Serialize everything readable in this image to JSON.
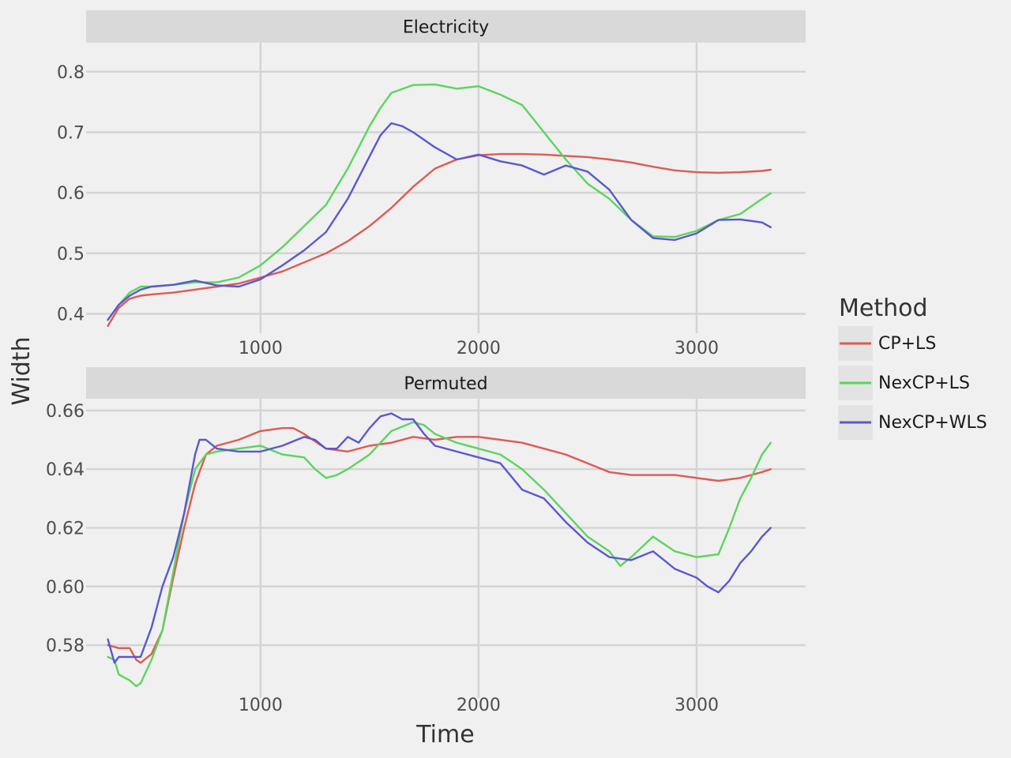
{
  "chart_data": {
    "type": "line",
    "xlabel": "Time",
    "ylabel": "Width",
    "legend": {
      "title": "Method",
      "position": "right",
      "entries": [
        {
          "name": "CP+LS",
          "color": "#de5a52"
        },
        {
          "name": "NexCP+LS",
          "color": "#5bd55d"
        },
        {
          "name": "NexCP+WLS",
          "color": "#5b57d1"
        }
      ]
    },
    "grid": true,
    "panels": [
      {
        "strip": "Electricity",
        "xlim": [
          200,
          3500
        ],
        "ylim": [
          0.368,
          0.848
        ],
        "x_ticks": [
          1000,
          2000,
          3000
        ],
        "x_tick_labels": [
          "1000",
          "2000",
          "3000"
        ],
        "y_ticks": [
          0.4,
          0.5,
          0.6,
          0.7,
          0.8
        ],
        "y_tick_labels": [
          "0.4",
          "0.5",
          "0.6",
          "0.7",
          "0.8"
        ],
        "series": [
          {
            "name": "CP+LS",
            "color": "#de5a52",
            "x": [
              300,
              350,
              400,
              450,
              500,
              600,
              700,
              800,
              900,
              1000,
              1100,
              1200,
              1300,
              1400,
              1500,
              1600,
              1700,
              1800,
              1900,
              2000,
              2100,
              2200,
              2300,
              2400,
              2500,
              2600,
              2700,
              2800,
              2900,
              3000,
              3100,
              3200,
              3300,
              3340
            ],
            "y": [
              0.38,
              0.41,
              0.425,
              0.43,
              0.432,
              0.435,
              0.44,
              0.445,
              0.45,
              0.46,
              0.47,
              0.485,
              0.5,
              0.52,
              0.545,
              0.575,
              0.61,
              0.64,
              0.655,
              0.662,
              0.664,
              0.664,
              0.663,
              0.661,
              0.659,
              0.655,
              0.65,
              0.643,
              0.637,
              0.634,
              0.633,
              0.634,
              0.636,
              0.638
            ]
          },
          {
            "name": "NexCP+LS",
            "color": "#5bd55d",
            "x": [
              300,
              350,
              400,
              450,
              500,
              600,
              700,
              800,
              900,
              1000,
              1100,
              1200,
              1300,
              1400,
              1500,
              1550,
              1600,
              1700,
              1800,
              1900,
              2000,
              2100,
              2200,
              2300,
              2400,
              2500,
              2600,
              2700,
              2800,
              2900,
              3000,
              3100,
              3200,
              3300,
              3340
            ],
            "y": [
              0.39,
              0.415,
              0.435,
              0.445,
              0.445,
              0.448,
              0.452,
              0.452,
              0.46,
              0.48,
              0.51,
              0.545,
              0.58,
              0.64,
              0.71,
              0.74,
              0.765,
              0.778,
              0.779,
              0.772,
              0.776,
              0.762,
              0.745,
              0.7,
              0.655,
              0.615,
              0.59,
              0.555,
              0.528,
              0.527,
              0.537,
              0.555,
              0.565,
              0.59,
              0.599
            ]
          },
          {
            "name": "NexCP+WLS",
            "color": "#5b57d1",
            "x": [
              300,
              350,
              400,
              450,
              500,
              600,
              700,
              800,
              900,
              1000,
              1100,
              1200,
              1300,
              1400,
              1500,
              1550,
              1600,
              1650,
              1700,
              1800,
              1900,
              2000,
              2100,
              2200,
              2300,
              2400,
              2500,
              2600,
              2700,
              2800,
              2900,
              3000,
              3100,
              3200,
              3300,
              3340
            ],
            "y": [
              0.39,
              0.415,
              0.43,
              0.44,
              0.445,
              0.448,
              0.455,
              0.447,
              0.445,
              0.457,
              0.48,
              0.505,
              0.535,
              0.59,
              0.66,
              0.695,
              0.715,
              0.71,
              0.7,
              0.675,
              0.655,
              0.663,
              0.652,
              0.645,
              0.63,
              0.645,
              0.635,
              0.605,
              0.555,
              0.525,
              0.522,
              0.533,
              0.555,
              0.556,
              0.551,
              0.543
            ]
          }
        ]
      },
      {
        "strip": "Permuted",
        "xlim": [
          200,
          3500
        ],
        "ylim": [
          0.562,
          0.664
        ],
        "x_ticks": [
          1000,
          2000,
          3000
        ],
        "x_tick_labels": [
          "1000",
          "2000",
          "3000"
        ],
        "y_ticks": [
          0.58,
          0.6,
          0.62,
          0.64,
          0.66
        ],
        "y_tick_labels": [
          "0.58",
          "0.60",
          "0.62",
          "0.64",
          "0.66"
        ],
        "series": [
          {
            "name": "CP+LS",
            "color": "#de5a52",
            "x": [
              300,
              350,
              400,
              430,
              450,
              500,
              550,
              600,
              650,
              700,
              750,
              800,
              900,
              1000,
              1100,
              1150,
              1200,
              1300,
              1400,
              1500,
              1600,
              1700,
              1800,
              1900,
              2000,
              2100,
              2200,
              2300,
              2400,
              2500,
              2600,
              2700,
              2800,
              2900,
              3000,
              3100,
              3200,
              3300,
              3340
            ],
            "y": [
              0.58,
              0.579,
              0.579,
              0.575,
              0.574,
              0.577,
              0.585,
              0.603,
              0.62,
              0.635,
              0.645,
              0.648,
              0.65,
              0.653,
              0.654,
              0.654,
              0.652,
              0.647,
              0.646,
              0.648,
              0.649,
              0.651,
              0.65,
              0.651,
              0.651,
              0.65,
              0.649,
              0.647,
              0.645,
              0.642,
              0.639,
              0.638,
              0.638,
              0.638,
              0.637,
              0.636,
              0.637,
              0.639,
              0.64
            ]
          },
          {
            "name": "NexCP+LS",
            "color": "#5bd55d",
            "x": [
              300,
              330,
              350,
              400,
              430,
              450,
              500,
              550,
              600,
              650,
              700,
              750,
              800,
              900,
              1000,
              1100,
              1200,
              1250,
              1300,
              1350,
              1400,
              1500,
              1600,
              1700,
              1750,
              1800,
              1900,
              2000,
              2100,
              2200,
              2300,
              2400,
              2500,
              2600,
              2650,
              2700,
              2800,
              2900,
              3000,
              3100,
              3150,
              3200,
              3250,
              3300,
              3340
            ],
            "y": [
              0.576,
              0.575,
              0.57,
              0.568,
              0.566,
              0.567,
              0.575,
              0.585,
              0.605,
              0.625,
              0.64,
              0.645,
              0.646,
              0.647,
              0.648,
              0.645,
              0.644,
              0.64,
              0.637,
              0.638,
              0.64,
              0.645,
              0.653,
              0.656,
              0.655,
              0.652,
              0.649,
              0.647,
              0.645,
              0.64,
              0.633,
              0.625,
              0.617,
              0.612,
              0.607,
              0.61,
              0.617,
              0.612,
              0.61,
              0.611,
              0.62,
              0.63,
              0.637,
              0.645,
              0.649
            ]
          },
          {
            "name": "NexCP+WLS",
            "color": "#5b57d1",
            "x": [
              300,
              330,
              350,
              400,
              450,
              500,
              550,
              600,
              650,
              700,
              720,
              750,
              800,
              900,
              1000,
              1100,
              1200,
              1250,
              1300,
              1350,
              1400,
              1450,
              1500,
              1550,
              1600,
              1650,
              1700,
              1750,
              1800,
              1900,
              2000,
              2100,
              2200,
              2300,
              2400,
              2500,
              2600,
              2700,
              2800,
              2900,
              3000,
              3050,
              3100,
              3150,
              3200,
              3250,
              3300,
              3340
            ],
            "y": [
              0.582,
              0.574,
              0.576,
              0.576,
              0.576,
              0.586,
              0.6,
              0.61,
              0.625,
              0.645,
              0.65,
              0.65,
              0.647,
              0.646,
              0.646,
              0.648,
              0.651,
              0.65,
              0.647,
              0.647,
              0.651,
              0.649,
              0.654,
              0.658,
              0.659,
              0.657,
              0.657,
              0.652,
              0.648,
              0.646,
              0.644,
              0.642,
              0.633,
              0.63,
              0.622,
              0.615,
              0.61,
              0.609,
              0.612,
              0.606,
              0.603,
              0.6,
              0.598,
              0.602,
              0.608,
              0.612,
              0.617,
              0.62
            ]
          }
        ]
      }
    ]
  }
}
